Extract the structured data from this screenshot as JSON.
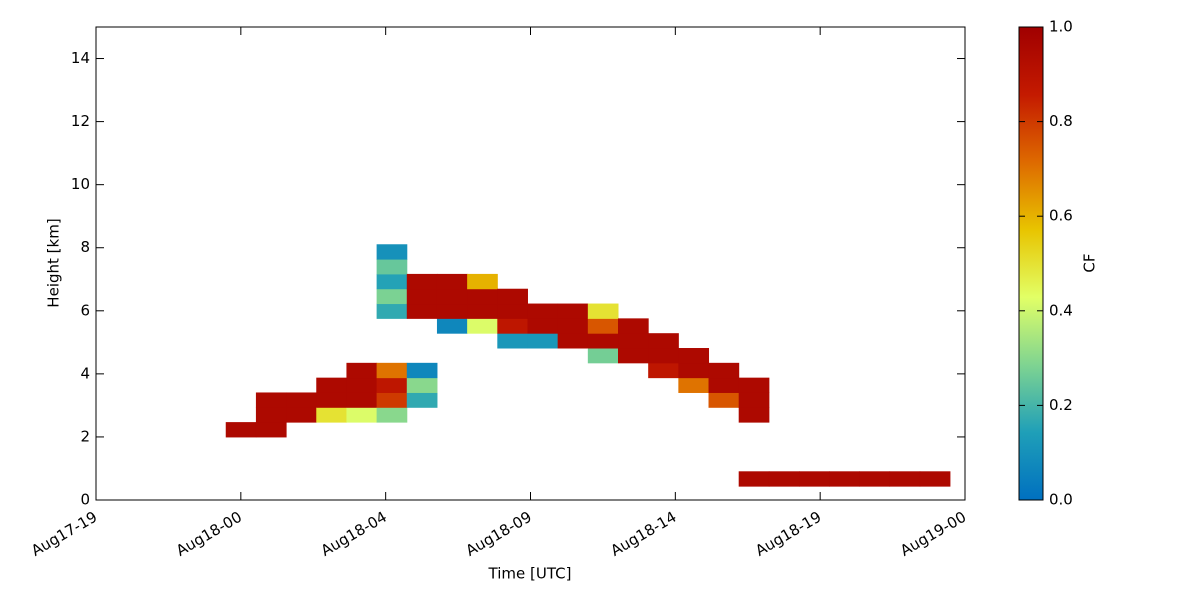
{
  "chart_data": {
    "type": "heatmap",
    "xlabel": "Time [UTC]",
    "ylabel": "Height [km]",
    "colorbar_label": "CF",
    "xlim": [
      -4.3,
      24.5
    ],
    "xticks": [
      {
        "value": -4.3,
        "label": "Aug17-19"
      },
      {
        "value": 0.5,
        "label": "Aug18-00"
      },
      {
        "value": 5.3,
        "label": "Aug18-04"
      },
      {
        "value": 10.1,
        "label": "Aug18-09"
      },
      {
        "value": 14.9,
        "label": "Aug18-14"
      },
      {
        "value": 19.7,
        "label": "Aug18-19"
      },
      {
        "value": 24.5,
        "label": "Aug19-00"
      }
    ],
    "ylim": [
      0,
      15
    ],
    "yticks": [
      0,
      2,
      4,
      6,
      8,
      10,
      12,
      14
    ],
    "clim": [
      0,
      1
    ],
    "cticks": [
      {
        "value": 0,
        "label": "0.0"
      },
      {
        "value": 0.2,
        "label": "0.2"
      },
      {
        "value": 0.4,
        "label": "0.4"
      },
      {
        "value": 0.6,
        "label": "0.6"
      },
      {
        "value": 0.8,
        "label": "0.8"
      },
      {
        "value": 1,
        "label": "1.0"
      }
    ],
    "colormap": [
      "#0070c0",
      "#1f9fb8",
      "#7fd491",
      "#e2ff66",
      "#e8c400",
      "#de6a00",
      "#c41a00",
      "#a00000"
    ],
    "x": [
      0,
      1,
      1,
      1,
      2,
      2,
      3,
      3,
      3,
      4,
      4,
      4,
      4,
      5,
      5,
      5,
      5,
      5,
      5,
      5,
      5,
      5,
      6,
      6,
      6,
      6,
      6,
      6,
      7,
      7,
      7,
      7,
      8,
      8,
      8,
      8,
      9,
      9,
      9,
      9,
      10,
      10,
      10,
      11,
      11,
      11,
      12,
      12,
      12,
      12,
      13,
      13,
      13,
      14,
      14,
      14,
      15,
      15,
      15,
      16,
      16,
      16,
      17,
      17,
      17,
      17,
      18,
      19,
      20,
      21,
      22,
      23
    ],
    "y": [
      2.0,
      2.0,
      2.47,
      2.94,
      2.47,
      2.94,
      2.47,
      2.94,
      3.41,
      2.47,
      2.94,
      3.41,
      3.88,
      2.47,
      2.94,
      3.41,
      3.88,
      5.76,
      6.23,
      6.7,
      7.17,
      7.64,
      2.94,
      3.41,
      3.88,
      5.76,
      6.23,
      6.7,
      5.29,
      5.76,
      6.23,
      6.7,
      5.29,
      5.76,
      6.23,
      6.7,
      4.82,
      5.29,
      5.76,
      6.23,
      4.82,
      5.29,
      5.76,
      4.82,
      5.29,
      5.76,
      4.35,
      4.82,
      5.29,
      5.76,
      4.35,
      4.82,
      5.29,
      3.88,
      4.35,
      4.82,
      3.41,
      3.88,
      4.35,
      2.94,
      3.41,
      3.88,
      2.47,
      2.94,
      3.41,
      0.44,
      0.44,
      0.44,
      0.44,
      0.44,
      0.44,
      0.44
    ],
    "values": [
      0.95,
      0.95,
      0.95,
      0.95,
      0.95,
      0.95,
      0.5,
      0.95,
      0.95,
      0.42,
      0.95,
      0.95,
      0.95,
      0.3,
      0.8,
      0.88,
      0.7,
      0.17,
      0.28,
      0.15,
      0.25,
      0.1,
      0.17,
      0.3,
      0.07,
      0.95,
      0.95,
      0.95,
      0.07,
      0.95,
      0.95,
      0.95,
      0.42,
      0.95,
      0.95,
      0.6,
      0.12,
      0.88,
      0.95,
      0.95,
      0.12,
      0.95,
      0.95,
      0.95,
      0.95,
      0.95,
      0.27,
      0.95,
      0.75,
      0.5,
      0.95,
      0.95,
      0.95,
      0.88,
      0.95,
      0.95,
      0.7,
      0.95,
      0.95,
      0.75,
      0.95,
      0.95,
      0.95,
      0.95,
      0.95,
      0.95,
      0.95,
      0.95,
      0.95,
      0.95,
      0.95,
      0.95
    ]
  }
}
